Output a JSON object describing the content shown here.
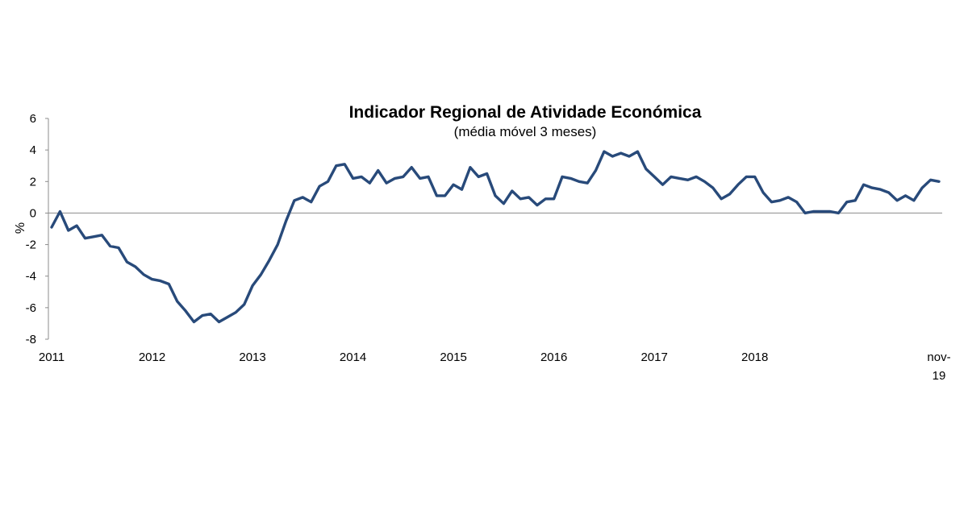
{
  "chart_data": {
    "type": "line",
    "title": "Indicador Regional de Atividade Económica",
    "subtitle": "(média móvel 3 meses)",
    "ylabel": "%",
    "xlabel": "",
    "ylim": [
      -8,
      6
    ],
    "yticks": [
      "6",
      "4",
      "2",
      "0",
      "-2",
      "-4",
      "-6",
      "-8"
    ],
    "xticks": [
      {
        "label": "2011",
        "index": 0
      },
      {
        "label": "2012",
        "index": 12
      },
      {
        "label": "2013",
        "index": 24
      },
      {
        "label": "2014",
        "index": 36
      },
      {
        "label": "2015",
        "index": 48
      },
      {
        "label": "2016",
        "index": 60
      },
      {
        "label": "2017",
        "index": 72
      },
      {
        "label": "2018",
        "index": 84
      }
    ],
    "last_tick": {
      "line1": "nov-",
      "line2": "19",
      "index": 106
    },
    "grid": false,
    "line_color": "#284a7a",
    "series": [
      {
        "values": [
          -0.9,
          0.1,
          -1.1,
          -0.8,
          -1.6,
          -1.5,
          -1.4,
          -2.1,
          -2.2,
          -3.1,
          -3.4,
          -3.9,
          -4.2,
          -4.3,
          -4.5,
          -5.6,
          -6.2,
          -6.9,
          -6.5,
          -6.4,
          -6.9,
          -6.6,
          -6.3,
          -5.8,
          -4.6,
          -3.9,
          -3.0,
          -2.0,
          -0.5,
          0.8,
          1.0,
          0.7,
          1.7,
          2.0,
          3.0,
          3.1,
          2.2,
          2.3,
          1.9,
          2.7,
          1.9,
          2.2,
          2.3,
          2.9,
          2.2,
          2.3,
          1.1,
          1.1,
          1.8,
          1.5,
          2.9,
          2.3,
          2.5,
          1.1,
          0.6,
          1.4,
          0.9,
          1.0,
          0.5,
          0.9,
          0.9,
          2.3,
          2.2,
          2.0,
          1.9,
          2.7,
          3.9,
          3.6,
          3.8,
          3.6,
          3.9,
          2.8,
          2.3,
          1.8,
          2.3,
          2.2,
          2.1,
          2.3,
          2.0,
          1.6,
          0.9,
          1.2,
          1.8,
          2.3,
          2.3,
          1.3,
          0.7,
          0.8,
          1.0,
          0.7,
          0.0,
          0.1,
          0.1,
          0.1,
          0.0,
          0.7,
          0.8,
          1.8,
          1.6,
          1.5,
          1.3,
          0.8,
          1.1,
          0.8,
          1.6,
          2.1,
          2.0
        ]
      }
    ]
  }
}
